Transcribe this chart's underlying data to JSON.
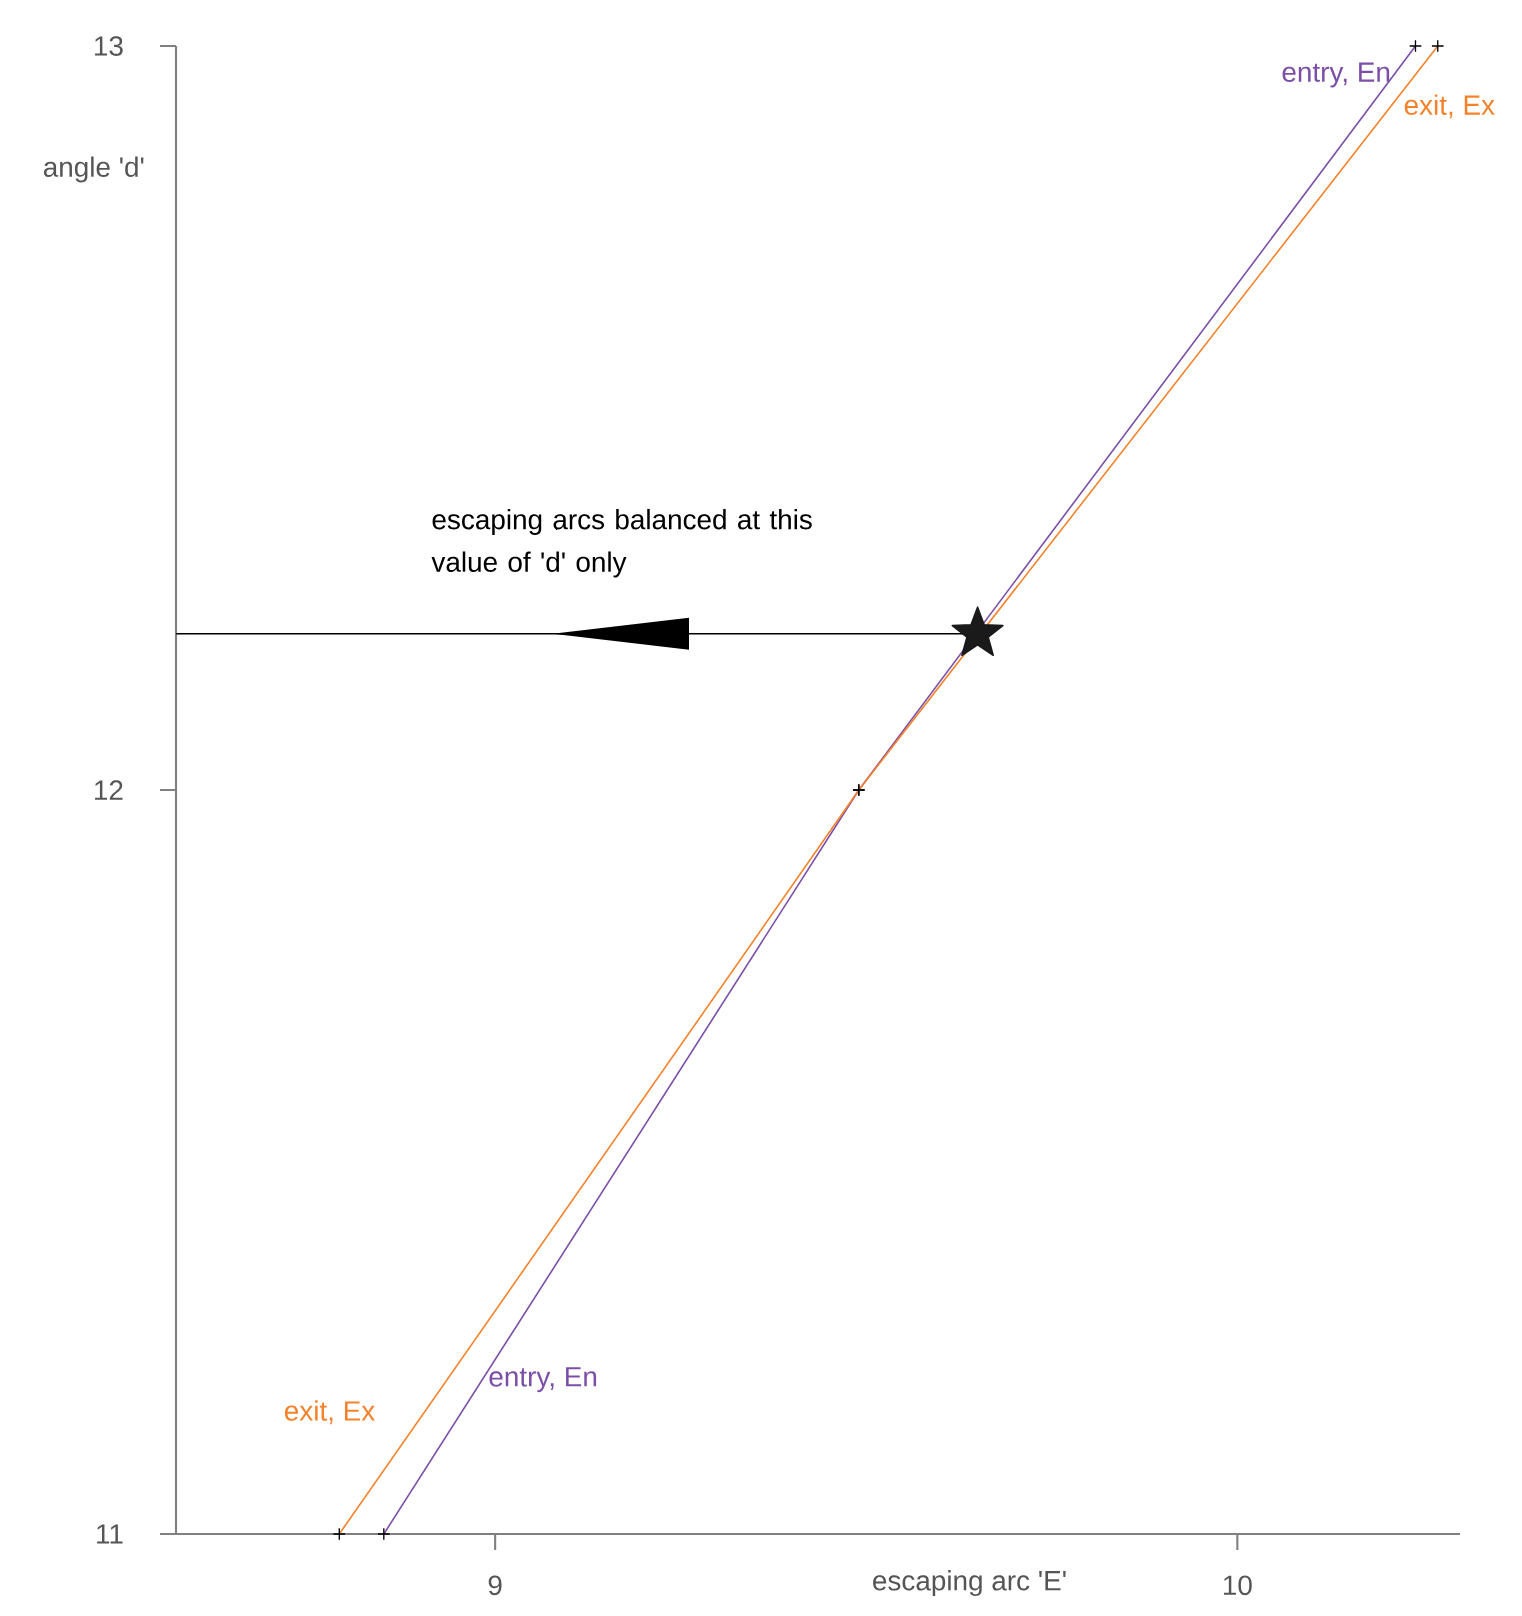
{
  "chart_data": {
    "type": "line",
    "xlabel": "escaping arc 'E'",
    "ylabel": "angle 'd'",
    "xlim": [
      8.57,
      10.3
    ],
    "ylim": [
      11,
      13
    ],
    "xticks": [
      9,
      10
    ],
    "yticks": [
      11,
      12,
      13
    ],
    "marker": "cross",
    "grid": false,
    "series": [
      {
        "name": "entry, En",
        "color": "#7b4fa8",
        "x": [
          8.85,
          9.49,
          10.24
        ],
        "values": [
          11,
          12,
          13
        ]
      },
      {
        "name": "exit, Ex",
        "color": "#f5822a",
        "x": [
          8.79,
          9.49,
          10.27
        ],
        "values": [
          11,
          12,
          13
        ]
      },
      {
        "type": "line",
        "color": "#000000",
        "marker": "none",
        "x": [
          8.57,
          9.65
        ],
        "values": [
          12.21,
          12.21
        ]
      },
      {
        "type": "scatter",
        "color": "#1a1a1a",
        "marker": "star",
        "x": [
          9.65
        ],
        "values": [
          12.21
        ]
      }
    ],
    "annotations": [
      "escaping arcs balanced at this value of 'd' only",
      "entry, En",
      "exit, Ex"
    ]
  }
}
